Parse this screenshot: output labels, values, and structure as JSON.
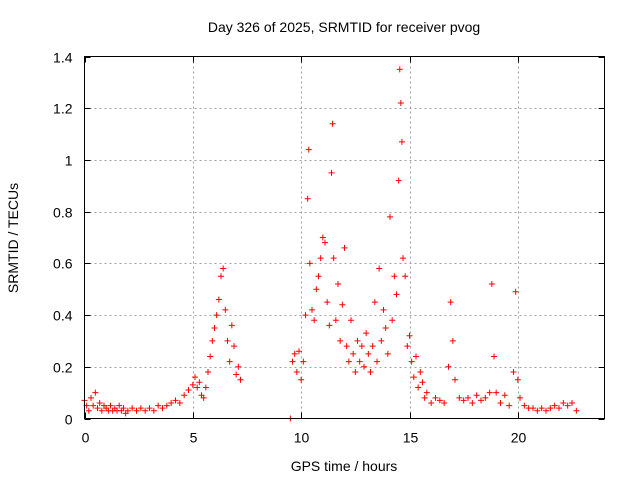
{
  "chart_data": {
    "type": "scatter",
    "title": "Day 326 of 2025, SRMTID for receiver pvog",
    "xlabel": "GPS time / hours",
    "ylabel": "SRMTID / TECUs",
    "xlim": [
      0,
      24
    ],
    "ylim": [
      0,
      1.4
    ],
    "xticks": [
      0,
      5,
      10,
      15,
      20
    ],
    "yticks": [
      0,
      0.2,
      0.4,
      0.6,
      0.8,
      1,
      1.2,
      1.4
    ],
    "xtick_labels": [
      "0",
      "5",
      "10",
      "15",
      "20"
    ],
    "ytick_labels": [
      "0",
      "0.2",
      "0.4",
      "0.6",
      "0.8",
      "1",
      "1.2",
      "1.4"
    ],
    "grid": true,
    "marker": "+",
    "color": "#ff0000",
    "series": [
      {
        "name": "SRMTID",
        "points": [
          [
            0.0,
            0.07
          ],
          [
            0.1,
            0.05
          ],
          [
            0.2,
            0.03
          ],
          [
            0.3,
            0.08
          ],
          [
            0.4,
            0.05
          ],
          [
            0.5,
            0.1
          ],
          [
            0.6,
            0.04
          ],
          [
            0.7,
            0.06
          ],
          [
            0.8,
            0.03
          ],
          [
            0.9,
            0.05
          ],
          [
            1.0,
            0.04
          ],
          [
            1.1,
            0.03
          ],
          [
            1.2,
            0.05
          ],
          [
            1.3,
            0.03
          ],
          [
            1.4,
            0.04
          ],
          [
            1.5,
            0.03
          ],
          [
            1.6,
            0.05
          ],
          [
            1.7,
            0.03
          ],
          [
            1.8,
            0.04
          ],
          [
            1.9,
            0.02
          ],
          [
            2.0,
            0.03
          ],
          [
            2.2,
            0.04
          ],
          [
            2.4,
            0.03
          ],
          [
            2.6,
            0.04
          ],
          [
            2.8,
            0.03
          ],
          [
            3.0,
            0.04
          ],
          [
            3.2,
            0.03
          ],
          [
            3.4,
            0.05
          ],
          [
            3.6,
            0.04
          ],
          [
            3.8,
            0.05
          ],
          [
            4.0,
            0.06
          ],
          [
            4.2,
            0.07
          ],
          [
            4.4,
            0.06
          ],
          [
            4.6,
            0.09
          ],
          [
            4.8,
            0.11
          ],
          [
            5.0,
            0.13
          ],
          [
            5.1,
            0.16
          ],
          [
            5.2,
            0.12
          ],
          [
            5.3,
            0.14
          ],
          [
            5.4,
            0.09
          ],
          [
            5.5,
            0.08
          ],
          [
            5.6,
            0.12
          ],
          [
            5.7,
            0.18
          ],
          [
            5.8,
            0.24
          ],
          [
            5.9,
            0.3
          ],
          [
            6.0,
            0.35
          ],
          [
            6.1,
            0.4
          ],
          [
            6.2,
            0.46
          ],
          [
            6.3,
            0.55
          ],
          [
            6.4,
            0.58
          ],
          [
            6.5,
            0.42
          ],
          [
            6.6,
            0.3
          ],
          [
            6.7,
            0.22
          ],
          [
            6.8,
            0.36
          ],
          [
            6.9,
            0.28
          ],
          [
            7.0,
            0.17
          ],
          [
            7.1,
            0.2
          ],
          [
            7.2,
            0.15
          ],
          [
            9.5,
            0.0
          ],
          [
            9.6,
            0.22
          ],
          [
            9.7,
            0.25
          ],
          [
            9.8,
            0.18
          ],
          [
            9.9,
            0.26
          ],
          [
            10.0,
            0.15
          ],
          [
            10.1,
            0.22
          ],
          [
            10.2,
            0.4
          ],
          [
            10.3,
            0.85
          ],
          [
            10.35,
            1.04
          ],
          [
            10.4,
            0.6
          ],
          [
            10.5,
            0.42
          ],
          [
            10.6,
            0.38
          ],
          [
            10.7,
            0.5
          ],
          [
            10.8,
            0.55
          ],
          [
            10.9,
            0.62
          ],
          [
            11.0,
            0.7
          ],
          [
            11.1,
            0.68
          ],
          [
            11.2,
            0.45
          ],
          [
            11.3,
            0.36
          ],
          [
            11.4,
            0.95
          ],
          [
            11.45,
            1.14
          ],
          [
            11.5,
            0.62
          ],
          [
            11.6,
            0.38
          ],
          [
            11.7,
            0.52
          ],
          [
            11.8,
            0.3
          ],
          [
            11.9,
            0.44
          ],
          [
            12.0,
            0.66
          ],
          [
            12.1,
            0.28
          ],
          [
            12.2,
            0.22
          ],
          [
            12.3,
            0.38
          ],
          [
            12.4,
            0.25
          ],
          [
            12.5,
            0.18
          ],
          [
            12.6,
            0.3
          ],
          [
            12.7,
            0.22
          ],
          [
            12.8,
            0.28
          ],
          [
            12.9,
            0.2
          ],
          [
            13.0,
            0.33
          ],
          [
            13.1,
            0.25
          ],
          [
            13.2,
            0.18
          ],
          [
            13.3,
            0.28
          ],
          [
            13.4,
            0.45
          ],
          [
            13.5,
            0.22
          ],
          [
            13.6,
            0.58
          ],
          [
            13.7,
            0.3
          ],
          [
            13.8,
            0.42
          ],
          [
            13.9,
            0.35
          ],
          [
            14.0,
            0.25
          ],
          [
            14.1,
            0.78
          ],
          [
            14.2,
            0.38
          ],
          [
            14.3,
            0.55
          ],
          [
            14.4,
            0.48
          ],
          [
            14.5,
            0.92
          ],
          [
            14.55,
            1.35
          ],
          [
            14.6,
            1.22
          ],
          [
            14.65,
            1.07
          ],
          [
            14.7,
            0.62
          ],
          [
            14.8,
            0.55
          ],
          [
            14.9,
            0.28
          ],
          [
            15.0,
            0.32
          ],
          [
            15.1,
            0.22
          ],
          [
            15.2,
            0.16
          ],
          [
            15.3,
            0.24
          ],
          [
            15.4,
            0.12
          ],
          [
            15.5,
            0.18
          ],
          [
            15.6,
            0.14
          ],
          [
            15.7,
            0.08
          ],
          [
            15.8,
            0.1
          ],
          [
            16.0,
            0.06
          ],
          [
            16.2,
            0.08
          ],
          [
            16.4,
            0.07
          ],
          [
            16.6,
            0.06
          ],
          [
            16.8,
            0.2
          ],
          [
            16.9,
            0.45
          ],
          [
            17.0,
            0.3
          ],
          [
            17.1,
            0.15
          ],
          [
            17.3,
            0.08
          ],
          [
            17.5,
            0.07
          ],
          [
            17.7,
            0.08
          ],
          [
            17.9,
            0.06
          ],
          [
            18.1,
            0.09
          ],
          [
            18.3,
            0.07
          ],
          [
            18.5,
            0.08
          ],
          [
            18.7,
            0.1
          ],
          [
            18.8,
            0.52
          ],
          [
            18.9,
            0.24
          ],
          [
            19.0,
            0.1
          ],
          [
            19.2,
            0.06
          ],
          [
            19.4,
            0.09
          ],
          [
            19.6,
            0.05
          ],
          [
            19.8,
            0.18
          ],
          [
            19.9,
            0.49
          ],
          [
            20.0,
            0.15
          ],
          [
            20.1,
            0.08
          ],
          [
            20.3,
            0.05
          ],
          [
            20.5,
            0.04
          ],
          [
            20.7,
            0.04
          ],
          [
            20.9,
            0.03
          ],
          [
            21.1,
            0.04
          ],
          [
            21.3,
            0.03
          ],
          [
            21.5,
            0.04
          ],
          [
            21.7,
            0.05
          ],
          [
            21.9,
            0.04
          ],
          [
            22.1,
            0.06
          ],
          [
            22.3,
            0.05
          ],
          [
            22.5,
            0.06
          ],
          [
            22.7,
            0.03
          ]
        ]
      }
    ]
  }
}
